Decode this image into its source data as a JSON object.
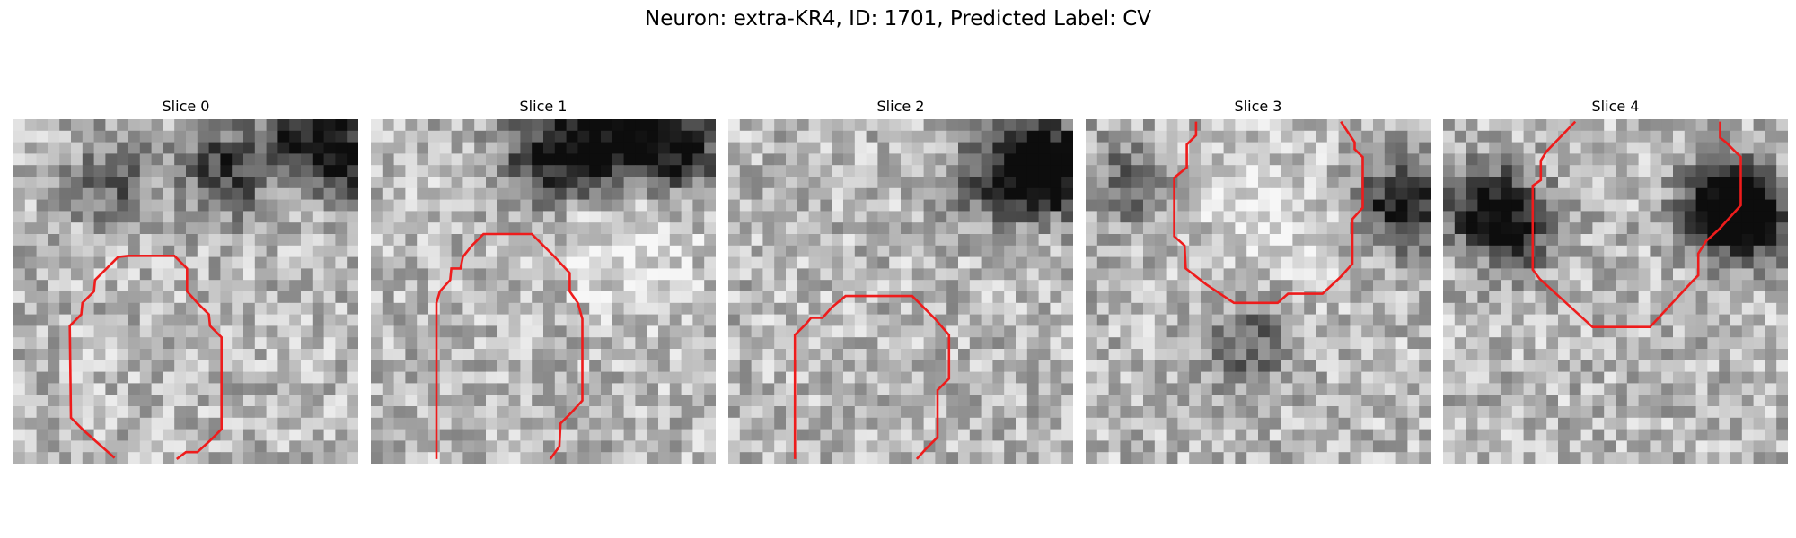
{
  "figure": {
    "title": "Neuron: extra-KR4, ID: 1701, Predicted Label: CV"
  },
  "slices": [
    {
      "title": "Slice 0",
      "contour_color": "#ee1c1c",
      "contour": [
        [
          8.8,
          29.5
        ],
        [
          7.1,
          28.0
        ],
        [
          6.1,
          27.1
        ],
        [
          5.0,
          26.0
        ],
        [
          4.9,
          18.0
        ],
        [
          5.9,
          17.0
        ],
        [
          6.0,
          16.0
        ],
        [
          7.0,
          15.0
        ],
        [
          7.1,
          14.0
        ],
        [
          8.1,
          13.0
        ],
        [
          9.1,
          12.0
        ],
        [
          10.0,
          11.9
        ],
        [
          14.0,
          11.9
        ],
        [
          15.1,
          13.0
        ],
        [
          15.1,
          15.0
        ],
        [
          16.0,
          16.0
        ],
        [
          17.0,
          17.0
        ],
        [
          17.1,
          18.0
        ],
        [
          18.1,
          19.0
        ],
        [
          18.1,
          27.0
        ],
        [
          17.1,
          28.0
        ],
        [
          16.0,
          29.0
        ],
        [
          15.0,
          29.0
        ],
        [
          14.2,
          29.6
        ]
      ],
      "dark_blobs": [
        [
          25,
          1,
          0.55
        ],
        [
          18,
          4,
          0.5
        ],
        [
          29,
          3,
          0.5
        ],
        [
          8,
          5,
          0.35
        ]
      ]
    },
    {
      "title": "Slice 1",
      "contour_color": "#ee1c1c",
      "contour": [
        [
          5.7,
          29.6
        ],
        [
          5.7,
          16.0
        ],
        [
          6.0,
          15.0
        ],
        [
          6.9,
          14.0
        ],
        [
          7.0,
          13.0
        ],
        [
          7.8,
          13.0
        ],
        [
          8.0,
          12.0
        ],
        [
          8.8,
          11.0
        ],
        [
          9.8,
          10.0
        ],
        [
          14.0,
          10.0
        ],
        [
          15.0,
          11.0
        ],
        [
          16.0,
          12.0
        ],
        [
          17.3,
          13.4
        ],
        [
          17.3,
          15.0
        ],
        [
          18.0,
          16.0
        ],
        [
          18.4,
          17.4
        ],
        [
          18.4,
          24.5
        ],
        [
          17.5,
          25.5
        ],
        [
          16.5,
          26.5
        ],
        [
          16.4,
          28.5
        ],
        [
          15.6,
          29.6
        ]
      ],
      "dark_blobs": [
        [
          18,
          2,
          0.6
        ],
        [
          23,
          1,
          0.55
        ],
        [
          14,
          3,
          0.4
        ],
        [
          27,
          2,
          0.5
        ]
      ],
      "bright_blobs": [
        [
          22,
          11,
          0.6,
          5
        ]
      ]
    },
    {
      "title": "Slice 2",
      "contour_color": "#ee1c1c",
      "contour": [
        [
          5.8,
          29.6
        ],
        [
          5.8,
          18.8
        ],
        [
          6.8,
          17.8
        ],
        [
          7.2,
          17.3
        ],
        [
          8.2,
          17.3
        ],
        [
          9.0,
          16.4
        ],
        [
          10.2,
          15.4
        ],
        [
          16.0,
          15.4
        ],
        [
          17.0,
          16.4
        ],
        [
          18.0,
          17.4
        ],
        [
          19.2,
          18.8
        ],
        [
          19.2,
          22.6
        ],
        [
          18.2,
          23.6
        ],
        [
          18.2,
          27.7
        ],
        [
          17.2,
          28.7
        ],
        [
          16.4,
          29.6
        ]
      ],
      "dark_blobs": [
        [
          28,
          4,
          0.6
        ],
        [
          26,
          3,
          0.5
        ],
        [
          22,
          5,
          0.35
        ]
      ]
    },
    {
      "title": "Slice 3",
      "contour_color": "#ee1c1c",
      "contour": [
        [
          9.6,
          0.2
        ],
        [
          9.6,
          1.4
        ],
        [
          8.8,
          2.2
        ],
        [
          8.8,
          4.2
        ],
        [
          7.7,
          5.1
        ],
        [
          7.7,
          10.2
        ],
        [
          8.6,
          11.0
        ],
        [
          8.7,
          13.0
        ],
        [
          10.5,
          14.4
        ],
        [
          12.9,
          16.0
        ],
        [
          16.7,
          16.0
        ],
        [
          17.6,
          15.2
        ],
        [
          20.6,
          15.2
        ],
        [
          22.2,
          13.7
        ],
        [
          23.2,
          12.6
        ],
        [
          23.2,
          8.7
        ],
        [
          24.1,
          7.7
        ],
        [
          24.1,
          3.3
        ],
        [
          23.4,
          2.6
        ],
        [
          23.4,
          2.0
        ],
        [
          22.2,
          0.2
        ]
      ],
      "dark_blobs": [
        [
          27,
          7,
          0.65
        ],
        [
          14,
          19,
          0.35
        ],
        [
          3,
          5,
          0.3
        ]
      ],
      "bright_blobs": [
        [
          15,
          8,
          0.5,
          6
        ]
      ]
    },
    {
      "title": "Slice 4",
      "contour_color": "#ee1c1c",
      "contour": [
        [
          11.5,
          0.2
        ],
        [
          9.0,
          2.8
        ],
        [
          8.5,
          3.6
        ],
        [
          8.5,
          5.3
        ],
        [
          7.8,
          5.8
        ],
        [
          7.8,
          13.1
        ],
        [
          8.4,
          13.9
        ],
        [
          13.0,
          18.1
        ],
        [
          18.0,
          18.1
        ],
        [
          21.8,
          14.0
        ],
        [
          22.2,
          13.6
        ],
        [
          22.2,
          11.7
        ],
        [
          22.9,
          10.6
        ],
        [
          24.0,
          9.6
        ],
        [
          25.9,
          7.5
        ],
        [
          25.9,
          3.3
        ],
        [
          24.6,
          2.0
        ],
        [
          24.1,
          1.6
        ],
        [
          24.1,
          0.2
        ]
      ],
      "dark_blobs": [
        [
          26,
          8,
          0.7
        ],
        [
          24,
          7,
          0.6
        ],
        [
          3,
          7,
          0.55
        ],
        [
          6,
          9,
          0.45
        ]
      ]
    }
  ]
}
